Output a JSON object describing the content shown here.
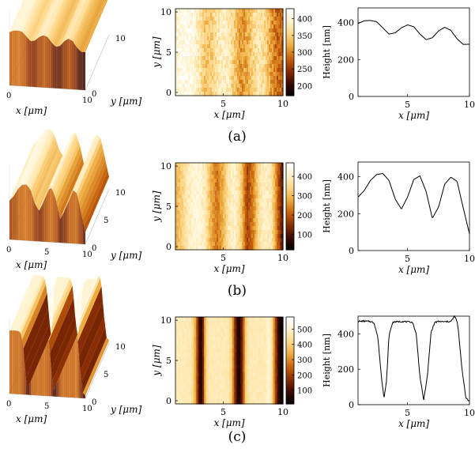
{
  "colors": {
    "colormap": [
      "#000000",
      "#3d0a00",
      "#8b2e04",
      "#c8640e",
      "#ecab3f",
      "#ffd88a",
      "#fff4cf",
      "#ffffff"
    ],
    "axis": "#000000",
    "line": "#000000"
  },
  "panels": [
    {
      "caption": "(a)",
      "surface": {
        "x_label": "x [μm]",
        "y_label": "y [μm]",
        "x_ticks": [
          "0",
          "10"
        ],
        "y_ticks": [
          "0",
          "10"
        ]
      },
      "map": {
        "x_label": "x [μm]",
        "y_label": "y [μm]",
        "x_ticks": [
          "5",
          "10"
        ],
        "y_ticks": [
          "0",
          "5",
          "10"
        ],
        "colorbar_ticks": [
          "400",
          "350",
          "300",
          "250",
          "200"
        ],
        "colorbar_range": [
          170,
          430
        ]
      },
      "profile": {
        "x_label": "x [μm]",
        "y_label": "Height [nm]",
        "x_ticks": [
          "5",
          "10"
        ],
        "y_ticks": [
          "0",
          "200",
          "400"
        ]
      }
    },
    {
      "caption": "(b)",
      "surface": {
        "x_label": "x [μm]",
        "y_label": "y [μm]",
        "x_ticks": [
          "0",
          "5",
          "10"
        ],
        "y_ticks": [
          "0",
          "5",
          "10"
        ]
      },
      "map": {
        "x_label": "x [μm]",
        "y_label": "y [μm]",
        "x_ticks": [
          "5",
          "10"
        ],
        "y_ticks": [
          "0",
          "5",
          "10"
        ],
        "colorbar_ticks": [
          "400",
          "300",
          "200",
          "100"
        ],
        "colorbar_range": [
          20,
          470
        ]
      },
      "profile": {
        "x_label": "x [μm]",
        "y_label": "Height [nm]",
        "x_ticks": [
          "5",
          "10"
        ],
        "y_ticks": [
          "0",
          "200",
          "400"
        ]
      }
    },
    {
      "caption": "(c)",
      "surface": {
        "x_label": "x [μm]",
        "y_label": "y [μm]",
        "x_ticks": [
          "0",
          "5",
          "10"
        ],
        "y_ticks": [
          "0",
          "5",
          "10"
        ]
      },
      "map": {
        "x_label": "x [μm]",
        "y_label": "y [μm]",
        "x_ticks": [
          "5",
          "10"
        ],
        "y_ticks": [
          "0",
          "5",
          "10"
        ],
        "colorbar_ticks": [
          "500",
          "400",
          "300",
          "200",
          "100"
        ],
        "colorbar_range": [
          10,
          580
        ]
      },
      "profile": {
        "x_label": "x [μm]",
        "y_label": "Height [nm]",
        "x_ticks": [
          "5",
          "10"
        ],
        "y_ticks": [
          "0",
          "200",
          "400"
        ]
      }
    }
  ],
  "chart_data": [
    {
      "type": "line",
      "panel": "(a)",
      "xlabel": "x [μm]",
      "ylabel": "Height [nm]",
      "xlim": [
        1,
        10
      ],
      "ylim": [
        0,
        480
      ],
      "x": [
        1.0,
        1.5,
        2.0,
        2.5,
        3.0,
        3.5,
        4.0,
        4.5,
        5.0,
        5.5,
        6.0,
        6.5,
        7.0,
        7.5,
        8.0,
        8.5,
        9.0,
        9.5,
        10.0
      ],
      "y": [
        395,
        410,
        412,
        405,
        372,
        338,
        345,
        372,
        388,
        378,
        338,
        308,
        318,
        355,
        375,
        358,
        312,
        282,
        283
      ]
    },
    {
      "type": "line",
      "panel": "(b)",
      "xlabel": "x [μm]",
      "ylabel": "Height [nm]",
      "xlim": [
        1,
        10
      ],
      "ylim": [
        0,
        480
      ],
      "x": [
        1.0,
        1.5,
        2.0,
        2.5,
        3.0,
        3.5,
        4.0,
        4.5,
        5.0,
        5.5,
        6.0,
        6.5,
        7.0,
        7.5,
        8.0,
        8.5,
        9.0,
        9.5,
        10.0
      ],
      "y": [
        290,
        325,
        380,
        412,
        418,
        380,
        280,
        225,
        290,
        385,
        405,
        320,
        175,
        235,
        360,
        398,
        375,
        230,
        90
      ]
    },
    {
      "type": "line",
      "panel": "(c)",
      "xlabel": "x [μm]",
      "ylabel": "Height [nm]",
      "xlim": [
        1,
        10
      ],
      "ylim": [
        0,
        500
      ],
      "x": [
        1.0,
        1.5,
        2.0,
        2.3,
        2.6,
        2.9,
        3.1,
        3.3,
        3.5,
        3.8,
        4.5,
        5.0,
        5.4,
        5.7,
        6.0,
        6.3,
        6.6,
        6.9,
        7.2,
        7.5,
        8.0,
        8.5,
        8.8,
        9.0,
        9.1,
        9.4,
        9.7,
        10.0
      ],
      "y": [
        470,
        472,
        470,
        462,
        380,
        150,
        40,
        130,
        390,
        466,
        470,
        468,
        466,
        400,
        160,
        25,
        160,
        410,
        465,
        470,
        468,
        470,
        500,
        470,
        420,
        200,
        40,
        20
      ]
    }
  ]
}
